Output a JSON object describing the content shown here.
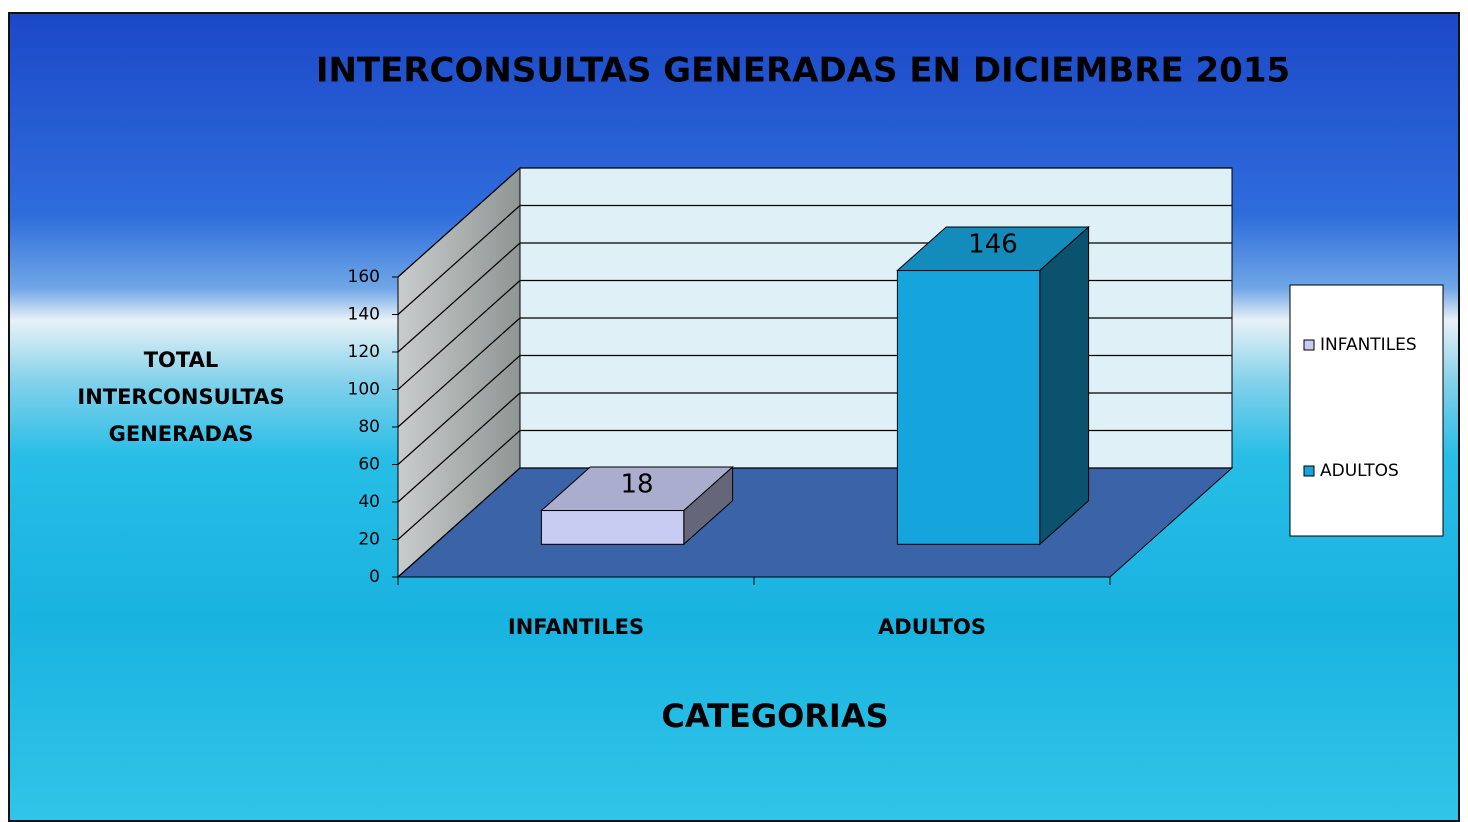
{
  "chart_data": {
    "type": "bar3d",
    "title": "INTERCONSULTAS GENERADAS EN DICIEMBRE 2015",
    "y_label": "TOTAL INTERCONSULTAS GENERADAS",
    "x_label": "CATEGORIAS",
    "categories": [
      "INFANTILES",
      "ADULTOS"
    ],
    "values": [
      18,
      146
    ],
    "colors": [
      "#c9ccf2",
      "#16a4dc"
    ],
    "ylim": [
      0,
      160
    ],
    "yticks": [
      0,
      20,
      40,
      60,
      80,
      100,
      120,
      140,
      160
    ],
    "grid": true,
    "legend": "right"
  }
}
